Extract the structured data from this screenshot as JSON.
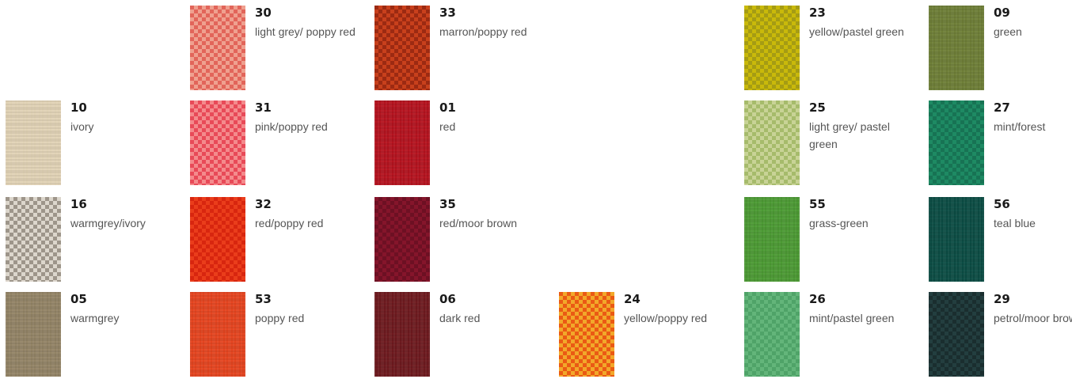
{
  "swatches": [
    {
      "code": "30",
      "name": "light grey/ poppy red",
      "colors": [
        "#e2655a",
        "#efa08f"
      ],
      "pattern": "check"
    },
    {
      "code": "33",
      "name": "marron/poppy red",
      "colors": [
        "#9c2a12",
        "#c8401c"
      ],
      "pattern": "check"
    },
    {
      "code": "23",
      "name": "yellow/pastel green",
      "colors": [
        "#c9b90a",
        "#a59c14"
      ],
      "pattern": "check"
    },
    {
      "code": "09",
      "name": "green",
      "colors": [
        "#6e7e37",
        "#627232"
      ],
      "pattern": "weave"
    },
    {
      "code": "10",
      "name": "ivory",
      "colors": [
        "#e1d3b6",
        "#d6c7a7"
      ],
      "pattern": "weave"
    },
    {
      "code": "31",
      "name": "pink/poppy red",
      "colors": [
        "#e84a58",
        "#f48a8c"
      ],
      "pattern": "check"
    },
    {
      "code": "01",
      "name": "red",
      "colors": [
        "#b5131f",
        "#a80f1b"
      ],
      "pattern": "weave"
    },
    {
      "code": "25",
      "name": "light grey/ pastel green",
      "colors": [
        "#a6bb6b",
        "#c8d396"
      ],
      "pattern": "check"
    },
    {
      "code": "27",
      "name": "mint/forest",
      "colors": [
        "#1e8a63",
        "#177354"
      ],
      "pattern": "check"
    },
    {
      "code": "16",
      "name": "warmgrey/ivory",
      "colors": [
        "#9d958a",
        "#dcd6cc"
      ],
      "pattern": "check"
    },
    {
      "code": "32",
      "name": "red/poppy red",
      "colors": [
        "#d8260f",
        "#ea3d1b"
      ],
      "pattern": "check"
    },
    {
      "code": "35",
      "name": "red/moor brown",
      "colors": [
        "#85152b",
        "#6d1023"
      ],
      "pattern": "check"
    },
    {
      "code": "55",
      "name": "grass-green",
      "colors": [
        "#4c9a34",
        "#458d2f"
      ],
      "pattern": "weave"
    },
    {
      "code": "56",
      "name": "teal blue",
      "colors": [
        "#0c4d44",
        "#0a4139"
      ],
      "pattern": "weave"
    },
    {
      "code": "05",
      "name": "warmgrey",
      "colors": [
        "#938466",
        "#867859"
      ],
      "pattern": "weave"
    },
    {
      "code": "53",
      "name": "poppy red",
      "colors": [
        "#e54520",
        "#d83e1c"
      ],
      "pattern": "weave"
    },
    {
      "code": "06",
      "name": "dark red",
      "colors": [
        "#6e1a1f",
        "#5f161a"
      ],
      "pattern": "weave"
    },
    {
      "code": "24",
      "name": "yellow/poppy red",
      "colors": [
        "#ea5a14",
        "#f2a82a"
      ],
      "pattern": "check"
    },
    {
      "code": "26",
      "name": "mint/pastel green",
      "colors": [
        "#4fa368",
        "#63b57a"
      ],
      "pattern": "check"
    },
    {
      "code": "29",
      "name": "petrol/moor brown",
      "colors": [
        "#233e3f",
        "#1a2e2f"
      ],
      "pattern": "check"
    }
  ]
}
